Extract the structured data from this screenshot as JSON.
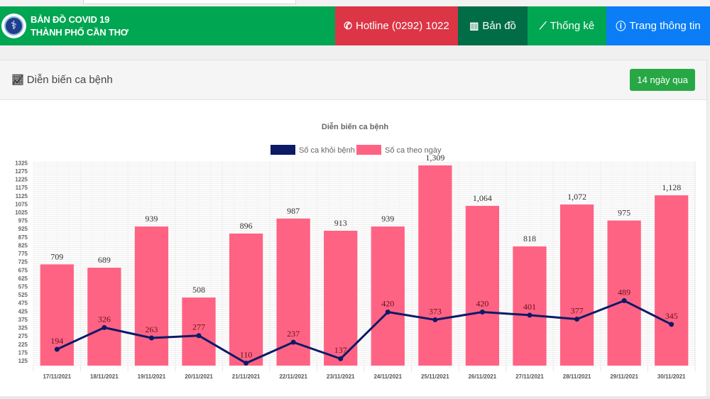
{
  "header": {
    "brand_line1": "BẢN ĐỒ COVID 19",
    "brand_line2": "THÀNH PHỐ CẦN THƠ",
    "logo_icon": "caduceus-emblem-icon",
    "nav": [
      {
        "label": "Hotline (0292) 1022",
        "icon": "phone-icon",
        "glyph": "✆",
        "color": "#dc3545"
      },
      {
        "label": "Bản đồ",
        "icon": "map-icon",
        "glyph": "▥",
        "color": "#006d47"
      },
      {
        "label": "Thống kê",
        "icon": "line-chart-icon",
        "glyph": "⟋",
        "color": "#00a651"
      },
      {
        "label": "Trang thông tin",
        "icon": "info-circle-icon",
        "glyph": "ⓘ",
        "color": "#0a7df7"
      }
    ]
  },
  "card": {
    "title": "Diễn biến ca bệnh",
    "title_icon": "line-chart-icon",
    "range_button": "14 ngày qua"
  },
  "chart_data": {
    "type": "bar",
    "title": "Diễn biến ca bệnh",
    "xlabel": "",
    "ylabel": "",
    "categories": [
      "17/11/2021",
      "18/11/2021",
      "19/11/2021",
      "20/11/2021",
      "21/11/2021",
      "22/11/2021",
      "23/11/2021",
      "24/11/2021",
      "25/11/2021",
      "26/11/2021",
      "27/11/2021",
      "28/11/2021",
      "29/11/2021",
      "30/11/2021"
    ],
    "series": [
      {
        "name": "Số ca khỏi bệnh",
        "type": "line",
        "color": "#0d1a66",
        "values": [
          194,
          326,
          263,
          277,
          110,
          237,
          137,
          420,
          373,
          420,
          401,
          377,
          489,
          345
        ],
        "labels": [
          "194",
          "326",
          "263",
          "277",
          "110",
          "237",
          "137",
          "420",
          "373",
          "420",
          "401",
          "377",
          "489",
          "345"
        ]
      },
      {
        "name": "Số ca theo ngày",
        "type": "bar",
        "color": "#ff6384",
        "values": [
          709,
          689,
          939,
          508,
          896,
          987,
          913,
          939,
          1309,
          1064,
          818,
          1072,
          975,
          1128
        ],
        "labels": [
          "709",
          "689",
          "939",
          "508",
          "896",
          "987",
          "913",
          "939",
          "1,309",
          "1,064",
          "818",
          "1,072",
          "975",
          "1,128"
        ]
      }
    ],
    "yticks": [
      125,
      175,
      225,
      275,
      325,
      375,
      425,
      475,
      525,
      575,
      625,
      675,
      725,
      775,
      825,
      875,
      925,
      975,
      1025,
      1075,
      1125,
      1175,
      1225,
      1275,
      1325
    ],
    "ylim": [
      95,
      1335
    ],
    "grid": true,
    "legend": "top-center"
  }
}
